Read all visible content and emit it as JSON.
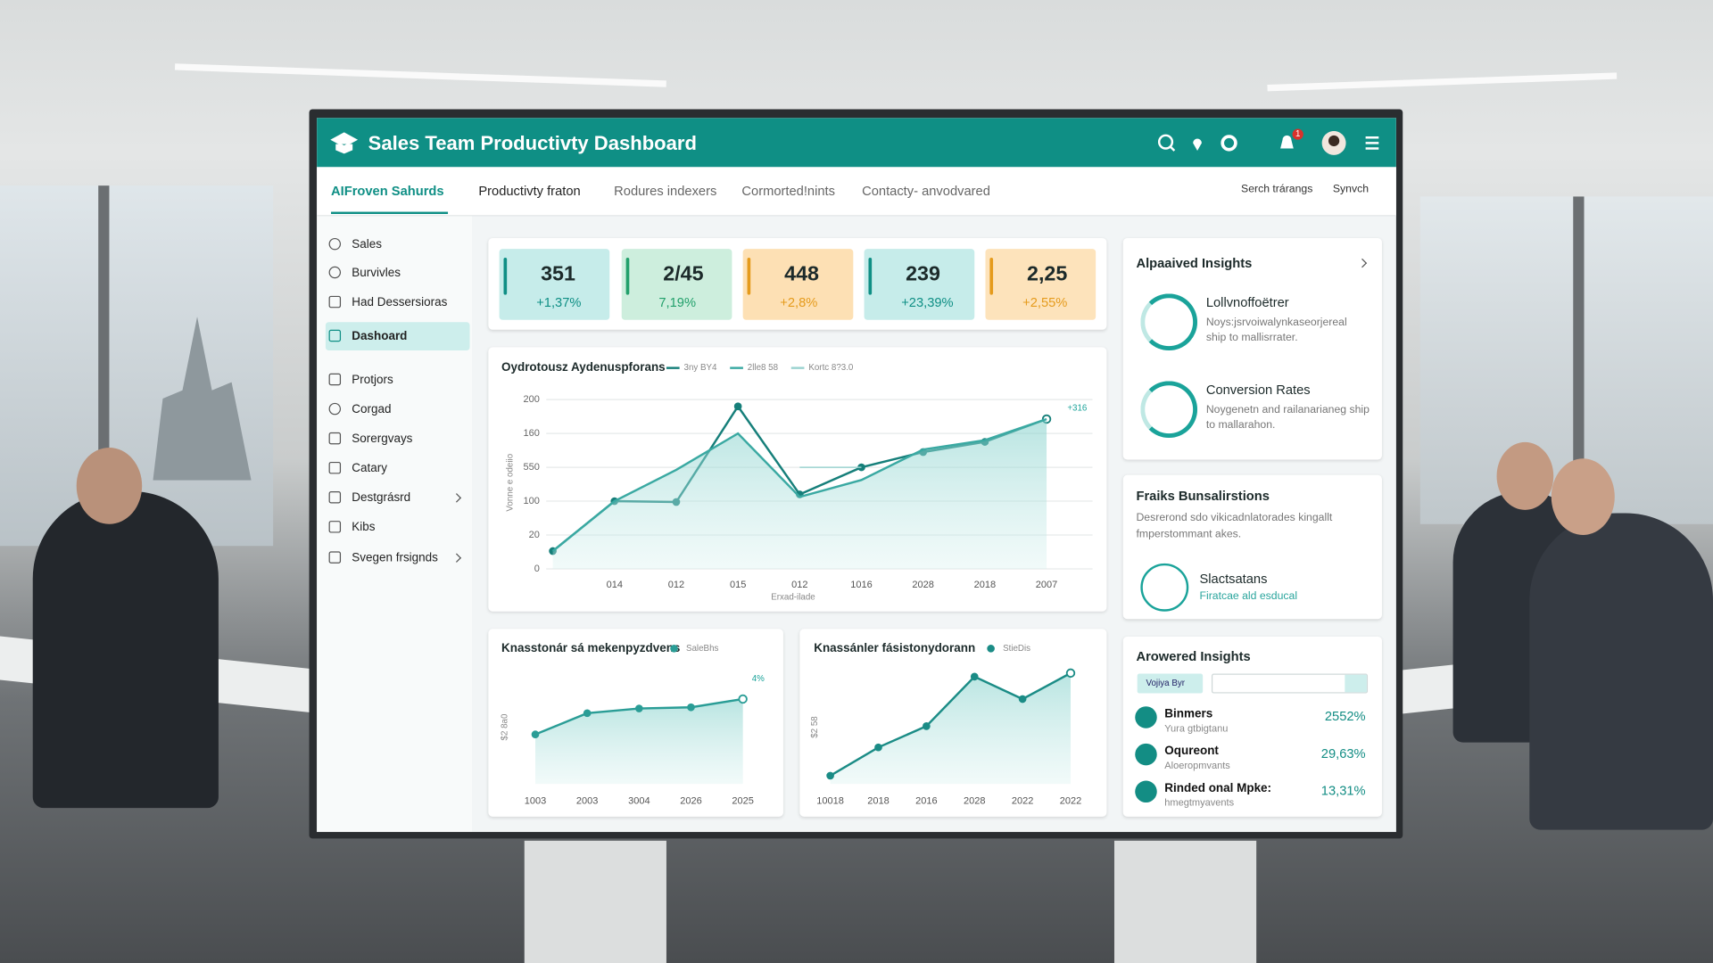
{
  "header": {
    "title": "Sales Team Productivty Dashboard",
    "badge": "1"
  },
  "tabs": [
    "AIFroven Sahurds",
    "Productivty fraton",
    "Rodures indexers",
    "Cormorted!nints",
    "Contacty- anvodvared"
  ],
  "search": {
    "placeholder": "Serch trárangs",
    "sync": "Synvch"
  },
  "sidebar": [
    "Sales",
    "Burvivles",
    "Had Dessersioras",
    "Dashoard",
    "Protjors",
    "Corgad",
    "Sorergvays",
    "Catary",
    "Destgrásrd",
    "Kibs",
    "Svegen frsignds"
  ],
  "kpis": [
    {
      "value": "351",
      "change": "+1,37%"
    },
    {
      "value": "2/45",
      "change": "7,19%"
    },
    {
      "value": "448",
      "change": "+2,8%"
    },
    {
      "value": "239",
      "change": "+23,39%"
    },
    {
      "value": "2,25",
      "change": "+2,55%"
    }
  ],
  "chart_data": [
    {
      "type": "line",
      "title": "Oydrotousz Aydenuspforans",
      "x_label": "Erxad-ilade",
      "y_label": "Vonne e odeiio",
      "annotation": "+316",
      "categories": [
        null,
        "014",
        "012",
        "015",
        "012",
        "1016",
        "2028",
        "2018",
        "2007"
      ],
      "series": [
        {
          "name": "3ny BY4",
          "color": "#167f7a",
          "values": [
            21,
            80,
            79,
            192,
            88,
            120,
            138,
            150,
            177
          ]
        },
        {
          "name": "2lle8 58",
          "color": "#3aa9a2",
          "area": true,
          "values": [
            21,
            80,
            117,
            160,
            85,
            105,
            141,
            152,
            177
          ]
        },
        {
          "name": "Kortc 8?3.0",
          "color": "#9bd3d0",
          "values": [
            null,
            null,
            null,
            null,
            120,
            120,
            null,
            null,
            null
          ]
        }
      ],
      "ylim": [
        0,
        200
      ],
      "yticks": [
        0,
        {
          "value": 40,
          "label": "20"
        },
        {
          "value": 80,
          "label": "100"
        },
        {
          "value": 120,
          "label": "550"
        },
        160,
        200
      ],
      "grid": true
    },
    {
      "type": "line",
      "title": "Knasstonár sá mekenpyzdvens",
      "y_label": "$2 8a0",
      "annotation": "4%",
      "categories": [
        "1003",
        "2003",
        "3004",
        "2026",
        "2025"
      ],
      "series": [
        {
          "name": "SaleBhs",
          "color": "#2a9d96",
          "area": true,
          "values": [
            42,
            60,
            64,
            65,
            72
          ]
        }
      ],
      "ylim": [
        0,
        100
      ]
    },
    {
      "type": "line",
      "title": "Knassánler fásistonydorann",
      "y_label": "$2 58",
      "categories": [
        "10018",
        "2018",
        "2016",
        "2028",
        "2022",
        "2022"
      ],
      "series": [
        {
          "name": "StieDis",
          "color": "#1b8c86",
          "area": true,
          "values": [
            7,
            31,
            49,
            91,
            72,
            94
          ]
        }
      ],
      "ylim": [
        0,
        100
      ]
    }
  ],
  "insights": {
    "title": "Alpaaived Insights",
    "items": [
      {
        "name": "Lollvnoffoëtrer",
        "text": "Noys:jsrvoiwalynkaseorjereal ship to mallisrrater."
      },
      {
        "name": "Conversion Rates",
        "text": "Noygenetn and railanarianeg ship to mallarahon."
      }
    ]
  },
  "recommendations": {
    "title": "Fraiks Bunsalirstions",
    "text": "Desrerond sdo vikicadnlatorades kingallt fmperstommant akes.",
    "item": {
      "name": "Slactsatans",
      "text": "Firatcae ald esducal"
    }
  },
  "powered": {
    "title": "Arowered Insights",
    "filter": "Vojiya Byr",
    "rows": [
      {
        "name": "Binmers",
        "sub": "Yura gtbigtanu",
        "pct": "2552%"
      },
      {
        "name": "Oqureont",
        "sub": "Aloeropmvants",
        "pct": "29,63%"
      },
      {
        "name": "Rinded onal Mpke:",
        "sub": "hmegtmyavents",
        "pct": "13,31%"
      }
    ]
  }
}
